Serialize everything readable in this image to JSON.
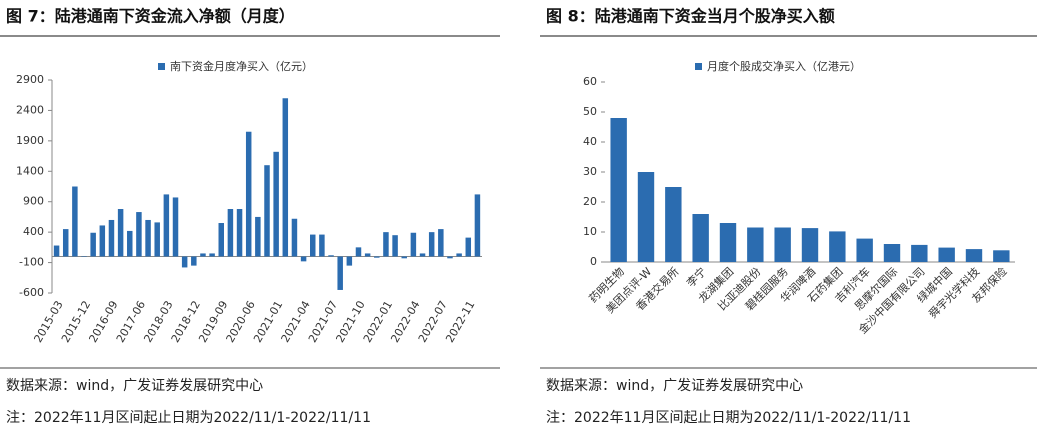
{
  "chart_data": [
    {
      "type": "bar",
      "title": "图 7：陆港通南下资金流入净额（月度）",
      "categories": [
        "2015-03",
        null,
        null,
        "2015-12",
        null,
        null,
        "2016-09",
        null,
        null,
        "2017-06",
        null,
        null,
        "2018-03",
        null,
        null,
        "2018-12",
        null,
        null,
        "2019-09",
        null,
        null,
        "2020-06",
        null,
        null,
        "2021-01",
        null,
        null,
        "2021-04",
        null,
        null,
        "2021-07",
        null,
        null,
        "2021-10",
        null,
        null,
        "2022-01",
        null,
        null,
        "2022-04",
        null,
        null,
        "2022-07",
        null,
        null,
        "2022-11",
        null
      ],
      "series": [
        {
          "name": "南下资金月度净买入（亿元）",
          "color": "#2b6cb0",
          "values": [
            180,
            450,
            1150,
            0,
            390,
            510,
            600,
            780,
            420,
            730,
            600,
            560,
            1020,
            970,
            -180,
            -150,
            50,
            50,
            550,
            780,
            780,
            2050,
            650,
            1500,
            1720,
            2600,
            620,
            -80,
            360,
            360,
            20,
            -550,
            -150,
            150,
            50,
            -20,
            400,
            350,
            -30,
            390,
            50,
            400,
            450,
            -30,
            50,
            310,
            1020
          ]
        }
      ],
      "ylim": [
        -600,
        2900
      ],
      "yticks": [
        -600,
        -100,
        400,
        900,
        1400,
        1900,
        2400,
        2900
      ],
      "source": "数据来源：wind，广发证券发展研究中心",
      "note": "注：2022年11月区间起止日期为2022/11/1-2022/11/11"
    },
    {
      "type": "bar",
      "title": "图 8：陆港通南下资金当月个股净买入额",
      "categories": [
        "药明生物",
        "美团点评-W",
        "香港交易所",
        "李宁",
        "龙湖集团",
        "比亚迪股份",
        "碧桂园服务",
        "华润啤酒",
        "石药集团",
        "吉利汽车",
        "思摩尔国际",
        "金沙中国有限公司",
        "绿城中国",
        "舜宇光学科技",
        "友邦保险"
      ],
      "series": [
        {
          "name": "月度个股成交净买入（亿港元）",
          "color": "#2b6cb0",
          "values": [
            48,
            30,
            25,
            16,
            13,
            11.5,
            11.5,
            11.3,
            10.2,
            7.8,
            6,
            5.7,
            4.8,
            4.3,
            3.9
          ]
        }
      ],
      "ylim": [
        0,
        60
      ],
      "yticks": [
        0,
        10,
        20,
        30,
        40,
        50,
        60
      ],
      "source": "数据来源：wind，广发证券发展研究中心",
      "note": "注：2022年11月区间起止日期为2022/11/1-2022/11/11"
    }
  ]
}
